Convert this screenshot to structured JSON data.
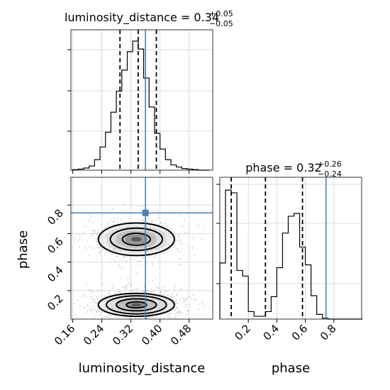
{
  "chart_data": {
    "type": "corner",
    "parameters": [
      "luminosity_distance",
      "phase"
    ],
    "truths": {
      "luminosity_distance": 0.36,
      "phase": 0.745
    },
    "truth_color": "#4682b4",
    "titles": {
      "luminosity_distance": {
        "name": "luminosity_distance",
        "median": "0.34",
        "plus": "+0.05",
        "minus": "−0.05"
      },
      "phase": {
        "name": "phase",
        "median": "0.32",
        "plus": "+0.26",
        "minus": "−0.24"
      }
    },
    "axis_labels": {
      "x_left": "luminosity_distance",
      "x_right": "phase",
      "y_lower": "phase"
    },
    "ranges": {
      "luminosity_distance": [
        0.155,
        0.545
      ],
      "phase": [
        0.0,
        0.995
      ]
    },
    "ticks": {
      "luminosity_distance": [
        "0.16",
        "0.24",
        "0.32",
        "0.40",
        "0.48"
      ],
      "phase_x": [
        "0.2",
        "0.4",
        "0.6",
        "0.8"
      ],
      "phase_y": [
        "0.2",
        "0.4",
        "0.6",
        "0.8"
      ]
    },
    "quantiles": {
      "luminosity_distance": [
        0.29,
        0.34,
        0.39
      ],
      "phase": [
        0.08,
        0.32,
        0.58
      ]
    },
    "hist_luminosity_distance": {
      "edges": [
        0.16,
        0.175,
        0.19,
        0.205,
        0.22,
        0.235,
        0.25,
        0.265,
        0.28,
        0.295,
        0.31,
        0.325,
        0.34,
        0.355,
        0.37,
        0.385,
        0.4,
        0.415,
        0.43,
        0.445,
        0.46,
        0.475,
        0.49,
        0.505,
        0.52,
        0.535
      ],
      "counts": [
        1,
        2,
        4,
        8,
        20,
        44,
        72,
        110,
        150,
        190,
        225,
        245,
        230,
        175,
        120,
        70,
        40,
        20,
        10,
        6,
        3,
        2,
        1,
        0,
        0
      ]
    },
    "hist_phase": {
      "edges": [
        0.0,
        0.04,
        0.08,
        0.12,
        0.16,
        0.2,
        0.24,
        0.28,
        0.32,
        0.36,
        0.4,
        0.44,
        0.48,
        0.52,
        0.56,
        0.6,
        0.64,
        0.68,
        0.72,
        0.76,
        0.8,
        0.84,
        0.88,
        0.92,
        0.96,
        1.0
      ],
      "counts": [
        60,
        138,
        135,
        52,
        46,
        8,
        3,
        3,
        8,
        24,
        55,
        92,
        110,
        113,
        77,
        58,
        25,
        5,
        1,
        0,
        0,
        0,
        0,
        0,
        0
      ]
    },
    "density_modes": [
      {
        "x": 0.335,
        "y": 0.56,
        "sx": 0.055,
        "sy": 0.06,
        "weight": 1
      },
      {
        "x": 0.335,
        "y": 0.1,
        "sx": 0.055,
        "sy": 0.05,
        "weight": 1.4
      }
    ],
    "grid": true
  }
}
